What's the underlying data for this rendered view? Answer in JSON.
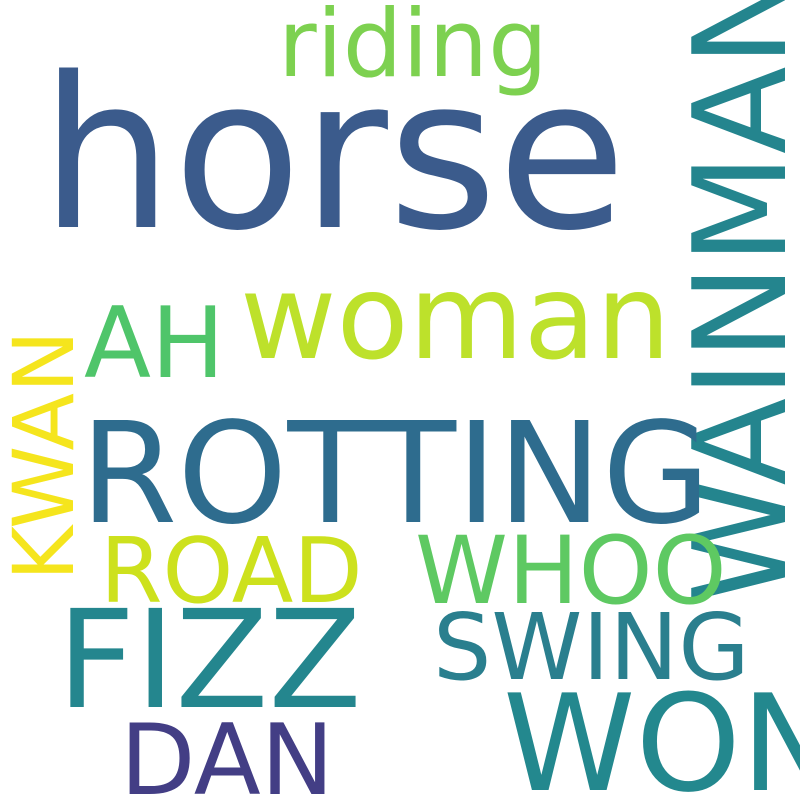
{
  "words": {
    "horse": {
      "text": "horse",
      "color": "#3b5b8c"
    },
    "riding": {
      "text": "riding",
      "color": "#7dd150"
    },
    "wainman": {
      "text": "WAINMAN",
      "color": "#24858e"
    },
    "woman": {
      "text": "woman",
      "color": "#bde12b"
    },
    "ah": {
      "text": "AH",
      "color": "#4fc56a"
    },
    "kwan": {
      "text": "KWAN",
      "color": "#f5e51d"
    },
    "rotting": {
      "text": "ROTTING",
      "color": "#2e6c8e"
    },
    "road": {
      "text": "ROAD",
      "color": "#cde11d"
    },
    "whoo": {
      "text": "WHOO",
      "color": "#5ec962"
    },
    "fizz": {
      "text": "FIZZ",
      "color": "#24868e"
    },
    "swing": {
      "text": "SWING",
      "color": "#2a7f8e"
    },
    "won": {
      "text": "WON",
      "color": "#23888e"
    },
    "dan": {
      "text": "DAN",
      "color": "#433e85"
    }
  }
}
